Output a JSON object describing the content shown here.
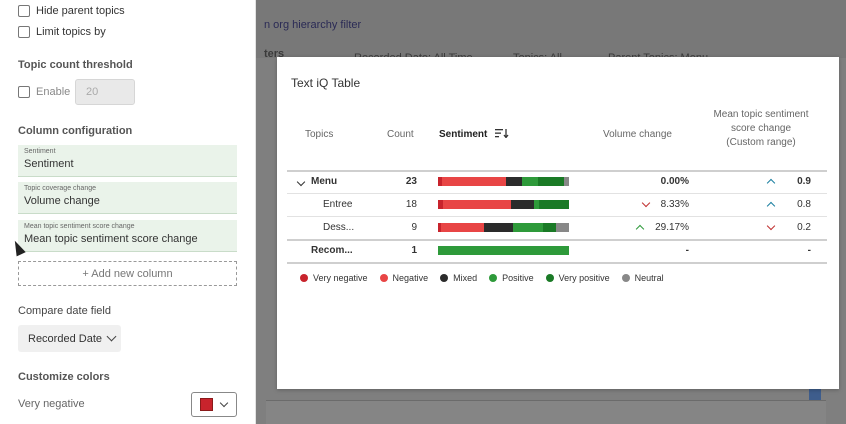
{
  "left_panel": {
    "options": [
      {
        "label": "Hide parent topics",
        "checked": false
      },
      {
        "label": "Limit topics by",
        "checked": false
      }
    ],
    "threshold": {
      "title": "Topic count threshold",
      "enable_label": "Enable",
      "enabled": false,
      "value": "20"
    },
    "column_config": {
      "title": "Column configuration",
      "columns": [
        {
          "caption": "Sentiment",
          "value": "Sentiment"
        },
        {
          "caption": "Topic coverage change",
          "value": "Volume change"
        },
        {
          "caption": "Mean topic sentiment score change",
          "value": "Mean topic sentiment score change"
        }
      ],
      "add_label": "+ Add new column"
    },
    "compare": {
      "title": "Compare date field",
      "selected": "Recorded Date"
    },
    "colors": {
      "title": "Customize colors",
      "items": [
        {
          "label": "Very negative",
          "color": "#c8232c"
        }
      ]
    }
  },
  "background": {
    "top_link": "n org hierarchy filter",
    "filters": [
      "ters",
      "Recorded Date: All Time",
      "Topics: All",
      "Parent Topics: Menu"
    ]
  },
  "widget": {
    "title": "Text iQ Table",
    "headers": {
      "topics": "Topics",
      "count": "Count",
      "sentiment": "Sentiment",
      "volume": "Volume change",
      "mean": "Mean topic sentiment score change (Custom range)"
    },
    "rows": [
      {
        "topic": "Menu",
        "count": "23",
        "volume": "0.00%",
        "volume_trend": "none",
        "mean": "0.9",
        "mean_trend": "up",
        "sentiment": [
          {
            "color": "#c8232c",
            "pct": 3
          },
          {
            "color": "#e84545",
            "pct": 49
          },
          {
            "color": "#2b2b2b",
            "pct": 12
          },
          {
            "color": "#2e9a3a",
            "pct": 12
          },
          {
            "color": "#1a7a26",
            "pct": 20
          },
          {
            "color": "#888888",
            "pct": 4
          }
        ]
      },
      {
        "topic": "Entree",
        "count": "18",
        "volume": "8.33%",
        "volume_trend": "down",
        "mean": "0.8",
        "mean_trend": "up",
        "sentiment": [
          {
            "color": "#c8232c",
            "pct": 4
          },
          {
            "color": "#e84545",
            "pct": 52
          },
          {
            "color": "#2b2b2b",
            "pct": 17
          },
          {
            "color": "#2e9a3a",
            "pct": 4
          },
          {
            "color": "#1a7a26",
            "pct": 23
          }
        ]
      },
      {
        "topic": "Dess...",
        "count": "9",
        "volume": "29.17%",
        "volume_trend": "up",
        "mean": "0.2",
        "mean_trend": "down",
        "sentiment": [
          {
            "color": "#c8232c",
            "pct": 2
          },
          {
            "color": "#e84545",
            "pct": 33
          },
          {
            "color": "#2b2b2b",
            "pct": 22
          },
          {
            "color": "#2e9a3a",
            "pct": 23
          },
          {
            "color": "#1a7a26",
            "pct": 10
          },
          {
            "color": "#888888",
            "pct": 10
          }
        ]
      },
      {
        "topic": "Recom...",
        "count": "1",
        "volume": "-",
        "volume_trend": "none",
        "mean": "-",
        "mean_trend": "none",
        "sentiment": [
          {
            "color": "#2e9a3a",
            "pct": 100
          }
        ]
      }
    ],
    "legend": [
      {
        "label": "Very negative",
        "color": "#c8232c"
      },
      {
        "label": "Negative",
        "color": "#e84545"
      },
      {
        "label": "Mixed",
        "color": "#2b2b2b"
      },
      {
        "label": "Positive",
        "color": "#2e9a3a"
      },
      {
        "label": "Very positive",
        "color": "#1a7a26"
      },
      {
        "label": "Neutral",
        "color": "#888888"
      }
    ]
  }
}
